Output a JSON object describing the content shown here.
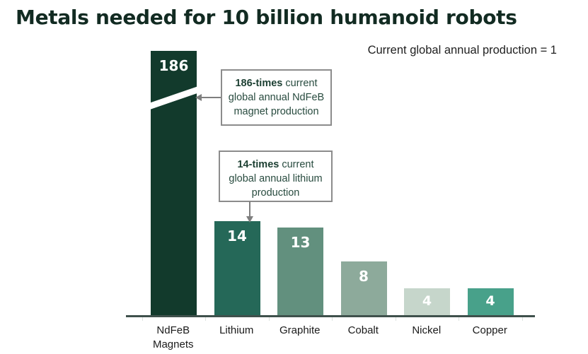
{
  "chart_data": {
    "type": "bar",
    "title": "Metals needed for 10 billion humanoid robots",
    "note": "Current global annual production = 1",
    "categories": [
      "NdFeB Magnets",
      "Lithium",
      "Graphite",
      "Cobalt",
      "Nickel",
      "Copper"
    ],
    "values": [
      186,
      14,
      13,
      8,
      4,
      4
    ],
    "colors": [
      "#123a2c",
      "#256858",
      "#62907e",
      "#8daa9b",
      "#c6d6cb",
      "#48a18a"
    ],
    "value_label_color": "#ffffff",
    "xlabel": "",
    "ylabel": "",
    "ylim": [
      0,
      40
    ],
    "grid": false,
    "legend": false,
    "axis_break": {
      "bar_index": 0,
      "style": "diagonal white slash through NdFeB bar (value 186 exceeds visible scale)"
    },
    "annotations": [
      {
        "bold": "186-times",
        "rest": " current",
        "line2": "global annual NdFeB",
        "line3": "magnet production",
        "target": "NdFeB Magnets"
      },
      {
        "bold": "14-times",
        "rest": " current",
        "line2": "global annual lithium",
        "line3": "production",
        "target": "Lithium"
      }
    ]
  }
}
